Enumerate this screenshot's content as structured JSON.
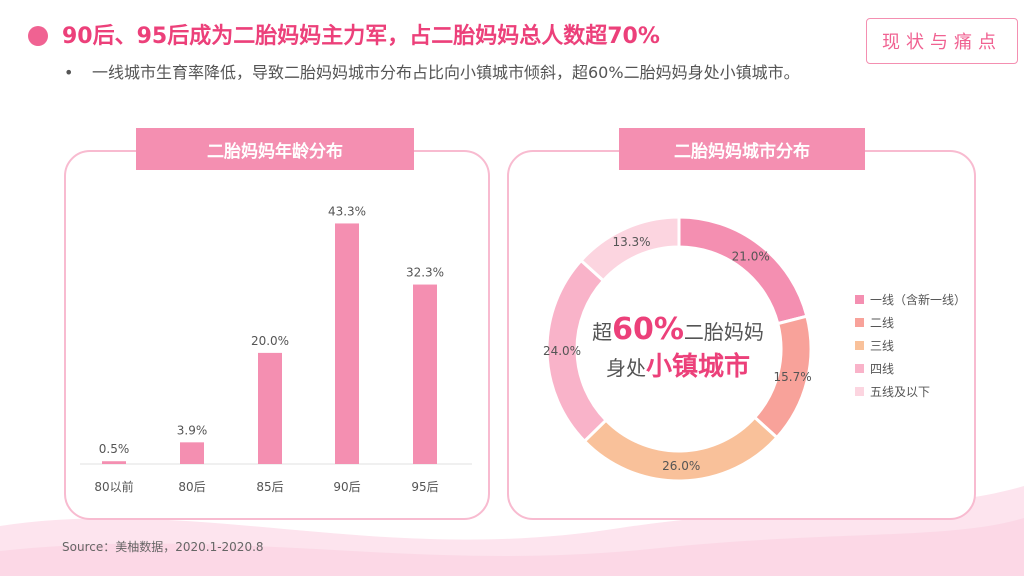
{
  "header": {
    "title": "90后、95后成为二胎妈妈主力军，占二胎妈妈总人数超70%",
    "tag": "现状与痛点",
    "bullet_mark": "•",
    "bullet": "一线城市生育率降低，导致二胎妈妈城市分布占比向小镇城市倾斜，超60%二胎妈妈身处小镇城市。"
  },
  "panels": {
    "age_title": "二胎妈妈年龄分布",
    "city_title": "二胎妈妈城市分布"
  },
  "donut_center": {
    "pre": "超",
    "big": "60%",
    "post": "二胎妈妈",
    "line2_pre": "身处",
    "line2_bold": "小镇城市"
  },
  "source": "Source：美柚数据，2020.1-2020.8",
  "colors": {
    "accent": "#ec407a",
    "bar": "#f48fb1",
    "panel_border": "#f8bbd0"
  },
  "chart_data": [
    {
      "type": "bar",
      "categories": [
        "80以前",
        "80后",
        "85后",
        "90后",
        "95后"
      ],
      "values": [
        0.5,
        3.9,
        20.0,
        43.3,
        32.3
      ],
      "value_labels": [
        "0.5%",
        "3.9%",
        "20.0%",
        "43.3%",
        "32.3%"
      ],
      "title": "二胎妈妈年龄分布",
      "grid": false
    },
    {
      "type": "pie",
      "style": "donut",
      "title": "二胎妈妈城市分布",
      "labels": [
        "一线（含新一线）",
        "二线",
        "三线",
        "四线",
        "五线及以下"
      ],
      "values": [
        21.0,
        15.7,
        26.0,
        24.0,
        13.3
      ],
      "value_labels": [
        "21.0%",
        "15.7%",
        "26.0%",
        "24.0%",
        "13.3%"
      ],
      "colors": [
        "#f48fb1",
        "#f8a29a",
        "#f9c19a",
        "#f9b3c9",
        "#fcd5e0"
      ],
      "legend_position": "right"
    }
  ]
}
